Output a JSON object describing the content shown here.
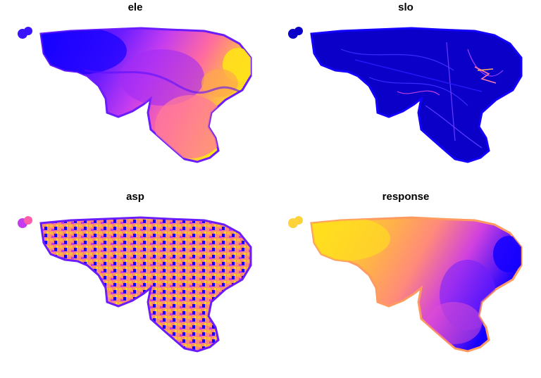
{
  "panels": [
    {
      "title": "ele",
      "palette": "plasma-blue-low"
    },
    {
      "title": "slo",
      "palette": "dark-blue-low"
    },
    {
      "title": "asp",
      "palette": "mixed-speckle"
    },
    {
      "title": "response",
      "palette": "plasma-yellow-high"
    }
  ],
  "colors": {
    "blue": "#1400ff",
    "dark_blue": "#0a00c8",
    "violet": "#8a1bff",
    "purple": "#c43cf0",
    "pink": "#ff5fa8",
    "salmon": "#ff8a7a",
    "orange": "#ffb347",
    "yellow": "#ffe21a"
  }
}
